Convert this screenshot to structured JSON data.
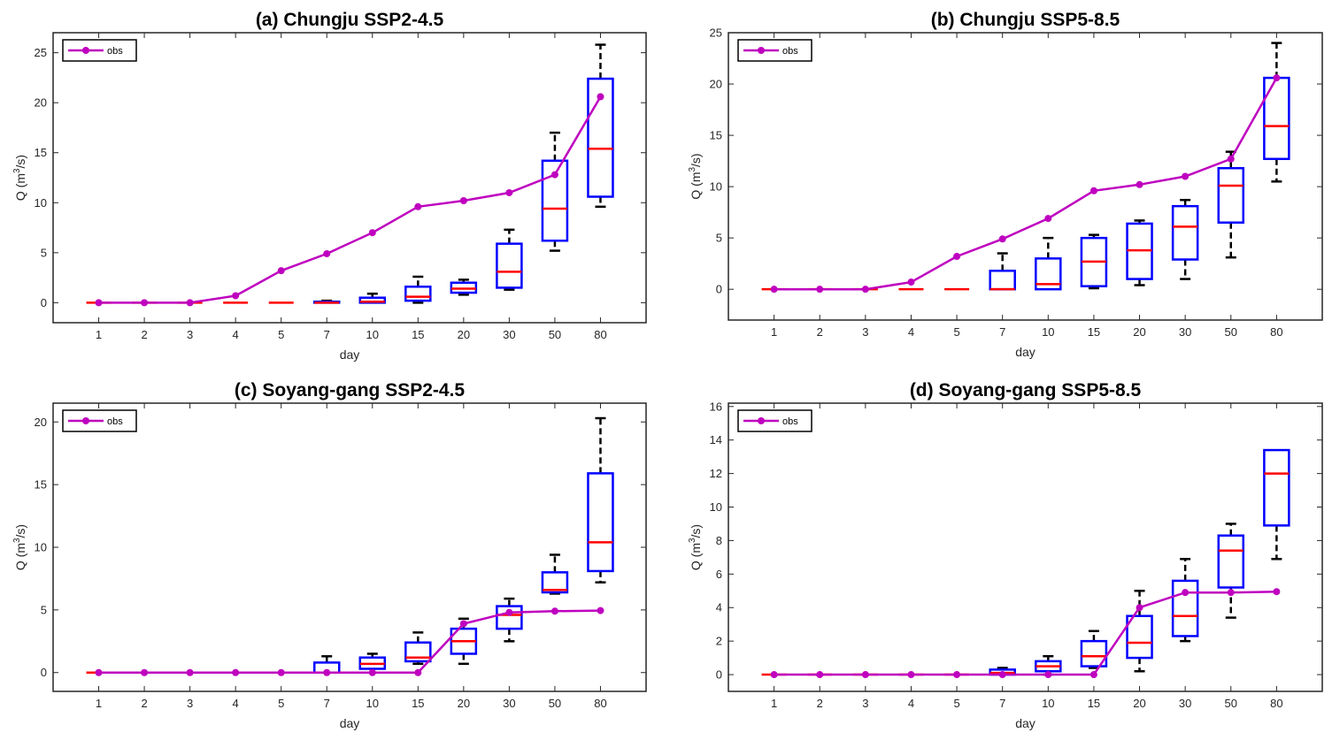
{
  "colors": {
    "box": "#0000ff",
    "median": "#ff0000",
    "obs": "#bf00bf",
    "whisker": "#000000",
    "axis": "#262626"
  },
  "chart_data": [
    {
      "type": "box",
      "title": "(a) Chungju SSP2-4.5",
      "xlabel": "day",
      "ylabel": "Q (m³/s)",
      "ylabel_base": "Q (m",
      "ylabel_sup": "3",
      "ylabel_end": "/s)",
      "categories": [
        "1",
        "2",
        "3",
        "4",
        "5",
        "7",
        "10",
        "15",
        "20",
        "30",
        "50",
        "80"
      ],
      "ylim": [
        -2,
        27
      ],
      "yticks": [
        0,
        5,
        10,
        15,
        20,
        25
      ],
      "legend": "obs",
      "obs": [
        0,
        0,
        0,
        0.7,
        3.2,
        4.9,
        7.0,
        9.6,
        10.2,
        11.0,
        12.8,
        20.6
      ],
      "boxes": [
        {
          "lw": 0,
          "q1": 0,
          "med": 0,
          "q3": 0,
          "uw": 0
        },
        {
          "lw": 0,
          "q1": 0,
          "med": 0,
          "q3": 0,
          "uw": 0
        },
        {
          "lw": 0,
          "q1": 0,
          "med": 0,
          "q3": 0,
          "uw": 0
        },
        {
          "lw": 0,
          "q1": 0,
          "med": 0,
          "q3": 0,
          "uw": 0
        },
        {
          "lw": 0,
          "q1": 0,
          "med": 0,
          "q3": 0,
          "uw": 0
        },
        {
          "lw": 0,
          "q1": 0,
          "med": 0,
          "q3": 0.1,
          "uw": 0.2
        },
        {
          "lw": 0,
          "q1": 0,
          "med": 0.1,
          "q3": 0.5,
          "uw": 0.9
        },
        {
          "lw": 0,
          "q1": 0.2,
          "med": 0.6,
          "q3": 1.6,
          "uw": 2.6
        },
        {
          "lw": 0.8,
          "q1": 1.0,
          "med": 1.4,
          "q3": 2.0,
          "uw": 2.3
        },
        {
          "lw": 1.3,
          "q1": 1.5,
          "med": 3.1,
          "q3": 5.9,
          "uw": 7.3
        },
        {
          "lw": 5.2,
          "q1": 6.2,
          "med": 9.4,
          "q3": 14.2,
          "uw": 17.0
        },
        {
          "lw": 9.6,
          "q1": 10.6,
          "med": 15.4,
          "q3": 22.4,
          "uw": 25.8
        }
      ]
    },
    {
      "type": "box",
      "title": "(b) Chungju SSP5-8.5",
      "xlabel": "day",
      "ylabel": "Q (m³/s)",
      "ylabel_base": "Q (m",
      "ylabel_sup": "3",
      "ylabel_end": "/s)",
      "categories": [
        "1",
        "2",
        "3",
        "4",
        "5",
        "7",
        "10",
        "15",
        "20",
        "30",
        "50",
        "80"
      ],
      "ylim": [
        -3,
        25
      ],
      "yticks": [
        0,
        5,
        10,
        15,
        20,
        25
      ],
      "legend": "obs",
      "obs": [
        0,
        0,
        0,
        0.7,
        3.2,
        4.9,
        6.9,
        9.6,
        10.2,
        11.0,
        12.7,
        20.6
      ],
      "boxes": [
        {
          "lw": 0,
          "q1": 0,
          "med": 0,
          "q3": 0,
          "uw": 0
        },
        {
          "lw": 0,
          "q1": 0,
          "med": 0,
          "q3": 0,
          "uw": 0
        },
        {
          "lw": 0,
          "q1": 0,
          "med": 0,
          "q3": 0,
          "uw": 0
        },
        {
          "lw": 0,
          "q1": 0,
          "med": 0,
          "q3": 0,
          "uw": 0
        },
        {
          "lw": 0,
          "q1": 0,
          "med": 0,
          "q3": 0,
          "uw": 0
        },
        {
          "lw": 0,
          "q1": 0,
          "med": 0,
          "q3": 1.8,
          "uw": 3.5
        },
        {
          "lw": 0,
          "q1": 0,
          "med": 0.5,
          "q3": 3.0,
          "uw": 5.0
        },
        {
          "lw": 0.1,
          "q1": 0.3,
          "med": 2.7,
          "q3": 5.0,
          "uw": 5.3
        },
        {
          "lw": 0.4,
          "q1": 1.0,
          "med": 3.8,
          "q3": 6.4,
          "uw": 6.7
        },
        {
          "lw": 1.0,
          "q1": 2.9,
          "med": 6.1,
          "q3": 8.1,
          "uw": 8.7
        },
        {
          "lw": 3.1,
          "q1": 6.5,
          "med": 10.1,
          "q3": 11.8,
          "uw": 13.4
        },
        {
          "lw": 10.5,
          "q1": 12.7,
          "med": 15.9,
          "q3": 20.6,
          "uw": 24.0
        }
      ]
    },
    {
      "type": "box",
      "title": "(c) Soyang-gang SSP2-4.5",
      "xlabel": "day",
      "ylabel": "Q (m³/s)",
      "ylabel_base": "Q (m",
      "ylabel_sup": "3",
      "ylabel_end": "/s)",
      "categories": [
        "1",
        "2",
        "3",
        "4",
        "5",
        "7",
        "10",
        "15",
        "20",
        "30",
        "50",
        "80"
      ],
      "ylim": [
        -1.5,
        21.5
      ],
      "yticks": [
        0,
        5,
        10,
        15,
        20
      ],
      "legend": "obs",
      "obs": [
        0,
        0,
        0,
        0,
        0,
        0,
        0,
        0,
        3.9,
        4.8,
        4.9,
        4.95
      ],
      "boxes": [
        {
          "lw": 0,
          "q1": 0,
          "med": 0,
          "q3": 0,
          "uw": 0
        },
        {
          "lw": 0,
          "q1": 0,
          "med": 0,
          "q3": 0,
          "uw": 0
        },
        {
          "lw": 0,
          "q1": 0,
          "med": 0,
          "q3": 0,
          "uw": 0
        },
        {
          "lw": 0,
          "q1": 0,
          "med": 0,
          "q3": 0,
          "uw": 0
        },
        {
          "lw": 0,
          "q1": 0,
          "med": 0,
          "q3": 0,
          "uw": 0
        },
        {
          "lw": 0,
          "q1": 0,
          "med": 0,
          "q3": 0.8,
          "uw": 1.3
        },
        {
          "lw": 0,
          "q1": 0.3,
          "med": 0.7,
          "q3": 1.2,
          "uw": 1.5
        },
        {
          "lw": 0.7,
          "q1": 0.9,
          "med": 1.2,
          "q3": 2.4,
          "uw": 3.2
        },
        {
          "lw": 0.7,
          "q1": 1.5,
          "med": 2.5,
          "q3": 3.5,
          "uw": 4.3
        },
        {
          "lw": 2.5,
          "q1": 3.5,
          "med": 4.6,
          "q3": 5.3,
          "uw": 5.9
        },
        {
          "lw": 6.3,
          "q1": 6.4,
          "med": 6.6,
          "q3": 8.0,
          "uw": 9.4
        },
        {
          "lw": 7.2,
          "q1": 8.1,
          "med": 10.4,
          "q3": 15.9,
          "uw": 20.3
        }
      ]
    },
    {
      "type": "box",
      "title": "(d) Soyang-gang SSP5-8.5",
      "xlabel": "day",
      "ylabel": "Q (m³/s)",
      "ylabel_base": "Q (m",
      "ylabel_sup": "3",
      "ylabel_end": "/s)",
      "categories": [
        "1",
        "2",
        "3",
        "4",
        "5",
        "7",
        "10",
        "15",
        "20",
        "30",
        "50",
        "80"
      ],
      "ylim": [
        -1,
        16.2
      ],
      "yticks": [
        0,
        2,
        4,
        6,
        8,
        10,
        12,
        14,
        16
      ],
      "legend": "obs",
      "obs": [
        0,
        0,
        0,
        0,
        0,
        0,
        0,
        0,
        4.0,
        4.9,
        4.9,
        4.95
      ],
      "boxes": [
        {
          "lw": 0,
          "q1": 0,
          "med": 0,
          "q3": 0,
          "uw": 0
        },
        {
          "lw": 0,
          "q1": 0,
          "med": 0,
          "q3": 0,
          "uw": 0
        },
        {
          "lw": 0,
          "q1": 0,
          "med": 0,
          "q3": 0,
          "uw": 0
        },
        {
          "lw": 0,
          "q1": 0,
          "med": 0,
          "q3": 0,
          "uw": 0
        },
        {
          "lw": 0,
          "q1": 0,
          "med": 0,
          "q3": 0,
          "uw": 0
        },
        {
          "lw": 0,
          "q1": 0,
          "med": 0.1,
          "q3": 0.3,
          "uw": 0.4
        },
        {
          "lw": 0,
          "q1": 0.2,
          "med": 0.5,
          "q3": 0.8,
          "uw": 1.1
        },
        {
          "lw": 0.4,
          "q1": 0.5,
          "med": 1.1,
          "q3": 2.0,
          "uw": 2.6
        },
        {
          "lw": 0.2,
          "q1": 1.0,
          "med": 1.9,
          "q3": 3.5,
          "uw": 5.0
        },
        {
          "lw": 2.0,
          "q1": 2.3,
          "med": 3.5,
          "q3": 5.6,
          "uw": 6.9
        },
        {
          "lw": 3.4,
          "q1": 5.2,
          "med": 7.4,
          "q3": 8.3,
          "uw": 9.0
        },
        {
          "lw": 6.9,
          "q1": 8.9,
          "med": 12.0,
          "q3": 13.4,
          "uw": 13.4
        }
      ]
    }
  ]
}
